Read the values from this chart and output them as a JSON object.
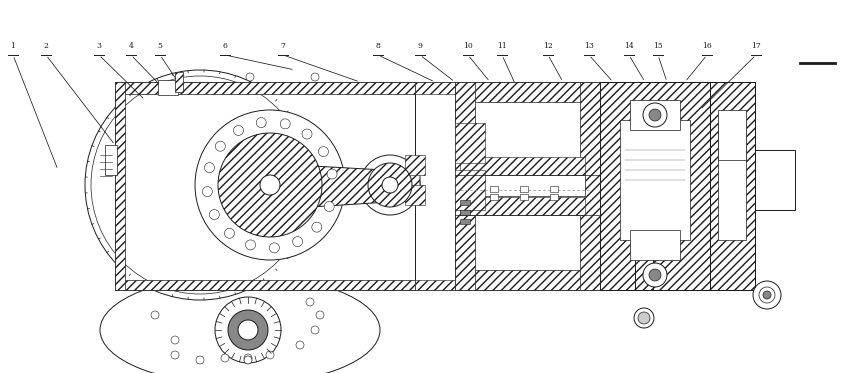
{
  "bg_color": "#ffffff",
  "lc": "#1a1a1a",
  "figsize": [
    8.47,
    3.73
  ],
  "dpi": 100,
  "leaders": [
    [
      1,
      13,
      55,
      58,
      170
    ],
    [
      2,
      46,
      55,
      115,
      145
    ],
    [
      3,
      99,
      55,
      145,
      100
    ],
    [
      4,
      131,
      55,
      163,
      88
    ],
    [
      5,
      160,
      55,
      178,
      82
    ],
    [
      6,
      225,
      55,
      295,
      70
    ],
    [
      7,
      283,
      55,
      360,
      82
    ],
    [
      8,
      378,
      55,
      435,
      82
    ],
    [
      9,
      420,
      55,
      455,
      82
    ],
    [
      10,
      468,
      55,
      490,
      82
    ],
    [
      11,
      502,
      55,
      517,
      88
    ],
    [
      12,
      548,
      55,
      563,
      82
    ],
    [
      13,
      589,
      55,
      613,
      82
    ],
    [
      14,
      629,
      55,
      645,
      82
    ],
    [
      15,
      658,
      55,
      667,
      82
    ],
    [
      16,
      707,
      55,
      685,
      82
    ],
    [
      17,
      756,
      55,
      700,
      110
    ]
  ]
}
